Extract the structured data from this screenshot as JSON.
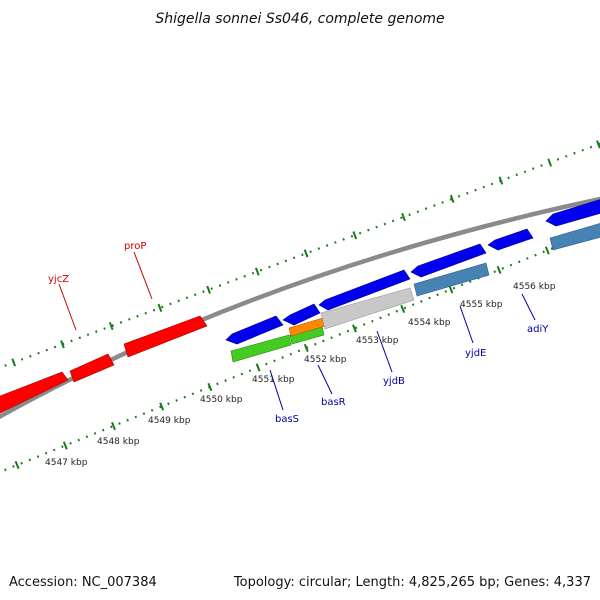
{
  "title": "Shigella sonnei Ss046, complete genome",
  "footer": {
    "accession": "Accession: NC_007384",
    "summary": "Topology: circular; Length: 4,825,265 bp; Genes: 4,337"
  },
  "colors": {
    "background": "#ffffff",
    "backbone": "#888888",
    "tick": "#1a7a1a",
    "forward_gene": "#ff0000",
    "reverse_gene": "#0000ee",
    "label_red": "#cc0000",
    "label_blue": "#000099",
    "green_feature": "#44cc22",
    "orange_feature": "#ff8800",
    "steelblue_feature": "#4682b4",
    "grey_feature": "#c8c8c8"
  },
  "scale_labels": [
    "4547 kbp",
    "4548 kbp",
    "4549 kbp",
    "4550 kbp",
    "4551 kbp",
    "4552 kbp",
    "4553 kbp",
    "4554 kbp",
    "4555 kbp",
    "4556 kbp"
  ],
  "genes": [
    {
      "name": "yjcZ",
      "strand": "forward",
      "color": "red"
    },
    {
      "name": "proP",
      "strand": "forward",
      "color": "red"
    },
    {
      "name": "basS",
      "strand": "reverse",
      "color": "blue"
    },
    {
      "name": "basR",
      "strand": "reverse",
      "color": "blue"
    },
    {
      "name": "yjdB",
      "strand": "reverse",
      "color": "blue"
    },
    {
      "name": "yjdE",
      "strand": "reverse",
      "color": "blue"
    },
    {
      "name": "adiY",
      "strand": "reverse",
      "color": "blue"
    }
  ]
}
